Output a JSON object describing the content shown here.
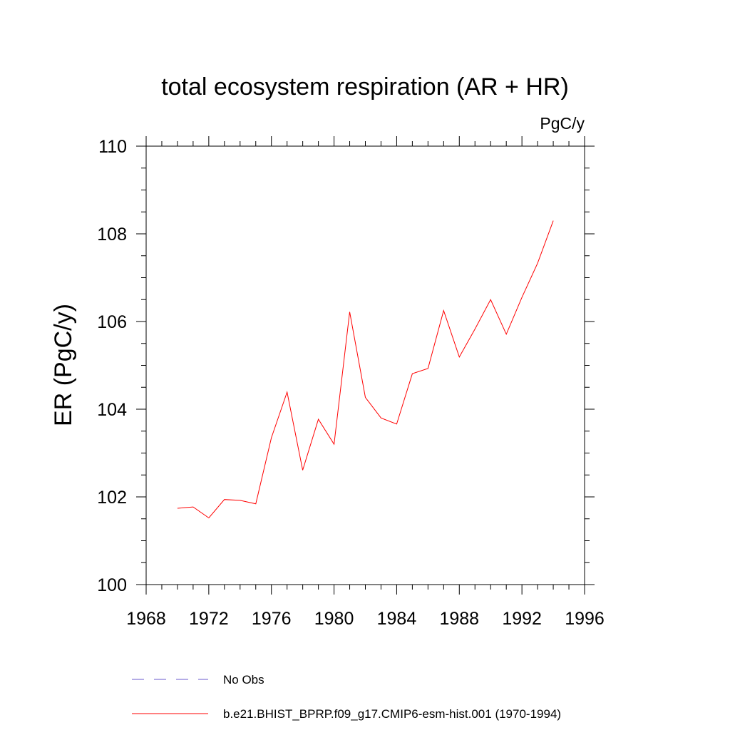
{
  "chart_data": {
    "type": "line",
    "title": "total ecosystem respiration (AR + HR)",
    "units_label": "PgC/y",
    "ylabel": "ER  (PgC/y)",
    "xlabel": "",
    "xlim": [
      1968,
      1996
    ],
    "ylim": [
      100,
      110
    ],
    "xticks": [
      1968,
      1972,
      1976,
      1980,
      1984,
      1988,
      1992,
      1996
    ],
    "xtick_labels": [
      "1968",
      "1972",
      "1976",
      "1980",
      "1984",
      "1988",
      "1992",
      "1996"
    ],
    "yticks": [
      100,
      102,
      104,
      106,
      108,
      110
    ],
    "ytick_labels": [
      "100",
      "102",
      "104",
      "106",
      "108",
      "110"
    ],
    "grid": false,
    "legend_position": "bottom",
    "series": [
      {
        "name": "b.e21.BHIST_BPRP.f09_g17.CMIP6-esm-hist.001 (1970-1994)",
        "color": "#ff0000",
        "style": "solid",
        "x": [
          1970,
          1971,
          1972,
          1973,
          1974,
          1975,
          1976,
          1977,
          1978,
          1979,
          1980,
          1981,
          1982,
          1983,
          1984,
          1985,
          1986,
          1987,
          1988,
          1989,
          1990,
          1991,
          1992,
          1993,
          1994
        ],
        "values": [
          101.74,
          101.77,
          101.52,
          101.94,
          101.92,
          101.84,
          103.35,
          104.39,
          102.61,
          103.77,
          103.2,
          106.22,
          104.27,
          103.8,
          103.66,
          104.81,
          104.93,
          106.25,
          105.19,
          105.83,
          106.5,
          105.71,
          106.55,
          107.33,
          108.3
        ]
      }
    ],
    "legend": [
      {
        "label": "No Obs",
        "color": "#6a5acd",
        "style": "dashed"
      },
      {
        "label": "b.e21.BHIST_BPRP.f09_g17.CMIP6-esm-hist.001 (1970-1994)",
        "color": "#ff0000",
        "style": "solid"
      }
    ]
  }
}
